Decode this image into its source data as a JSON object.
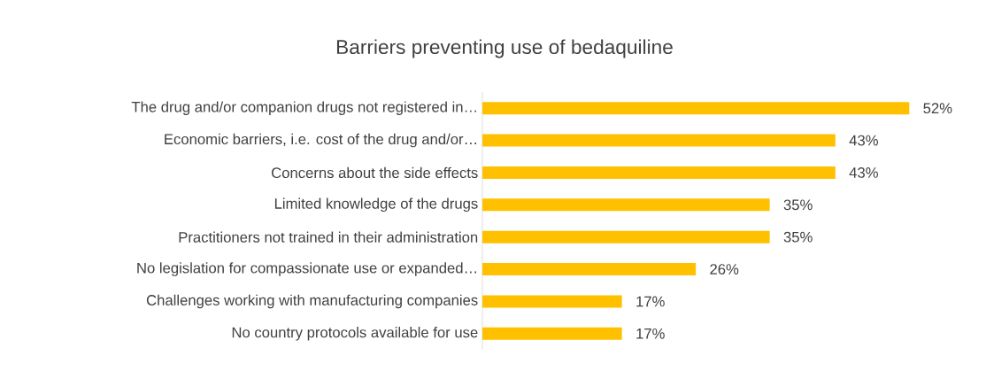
{
  "chart_data": {
    "type": "bar",
    "orientation": "horizontal",
    "title": "Barriers preventing use of bedaquiline",
    "categories": [
      "The drug and/or companion drugs not registered in…",
      "Economic barriers, i.e. cost of the drug and/or…",
      "Concerns about the side effects",
      "Limited knowledge of the drugs",
      "Practitioners not trained in their administration",
      "No legislation for compassionate use or expanded…",
      "Challenges working with manufacturing companies",
      "No country protocols available for use"
    ],
    "values": [
      52,
      43,
      43,
      35,
      35,
      26,
      17,
      17
    ],
    "value_labels": [
      "52%",
      "43%",
      "43%",
      "35%",
      "35%",
      "26%",
      "17%",
      "17%"
    ],
    "color": "#ffc000"
  }
}
